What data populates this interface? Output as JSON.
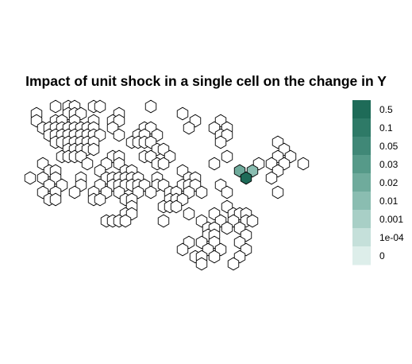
{
  "chart_data": {
    "type": "hexbin-map",
    "title": "Impact of unit shock in a single cell on the change in Y",
    "xlabel": "",
    "ylabel": "",
    "grid": false,
    "legend": {
      "position": "right",
      "labels": [
        "0.5",
        "0.1",
        "0.05",
        "0.03",
        "0.02",
        "0.01",
        "0.001",
        "1e-04",
        "0"
      ],
      "colors": [
        "#1e6b58",
        "#2e7a67",
        "#408877",
        "#569a89",
        "#6fab9c",
        "#8abdb1",
        "#a8cfc6",
        "#c5e0da",
        "#ddeeea"
      ]
    },
    "empty_fill": "#ffffff",
    "cells": [
      {
        "c": 6,
        "r": 0
      },
      {
        "c": 8,
        "r": 0
      },
      {
        "c": 9,
        "r": 0
      },
      {
        "c": 12,
        "r": 0
      },
      {
        "c": 13,
        "r": 0
      },
      {
        "c": 21,
        "r": 0
      },
      {
        "c": 3,
        "r": 1
      },
      {
        "c": 8,
        "r": 1
      },
      {
        "c": 9,
        "r": 1
      },
      {
        "c": 10,
        "r": 1
      },
      {
        "c": 16,
        "r": 1
      },
      {
        "c": 26,
        "r": 1
      },
      {
        "c": 3,
        "r": 2
      },
      {
        "c": 6,
        "r": 2
      },
      {
        "c": 7,
        "r": 2
      },
      {
        "c": 9,
        "r": 2
      },
      {
        "c": 12,
        "r": 2
      },
      {
        "c": 15,
        "r": 2
      },
      {
        "c": 16,
        "r": 2
      },
      {
        "c": 28,
        "r": 2
      },
      {
        "c": 32,
        "r": 2
      },
      {
        "c": 4,
        "r": 3
      },
      {
        "c": 5,
        "r": 3
      },
      {
        "c": 6,
        "r": 3
      },
      {
        "c": 7,
        "r": 3
      },
      {
        "c": 8,
        "r": 3
      },
      {
        "c": 9,
        "r": 3
      },
      {
        "c": 10,
        "r": 3
      },
      {
        "c": 11,
        "r": 3
      },
      {
        "c": 12,
        "r": 3
      },
      {
        "c": 15,
        "r": 3
      },
      {
        "c": 20,
        "r": 3
      },
      {
        "c": 21,
        "r": 3
      },
      {
        "c": 27,
        "r": 3
      },
      {
        "c": 31,
        "r": 3
      },
      {
        "c": 33,
        "r": 3
      },
      {
        "c": 5,
        "r": 4
      },
      {
        "c": 6,
        "r": 4
      },
      {
        "c": 7,
        "r": 4
      },
      {
        "c": 8,
        "r": 4
      },
      {
        "c": 9,
        "r": 4
      },
      {
        "c": 10,
        "r": 4
      },
      {
        "c": 11,
        "r": 4
      },
      {
        "c": 12,
        "r": 4
      },
      {
        "c": 13,
        "r": 4
      },
      {
        "c": 16,
        "r": 4
      },
      {
        "c": 19,
        "r": 4
      },
      {
        "c": 20,
        "r": 4
      },
      {
        "c": 22,
        "r": 4
      },
      {
        "c": 32,
        "r": 4
      },
      {
        "c": 33,
        "r": 4
      },
      {
        "c": 6,
        "r": 5
      },
      {
        "c": 7,
        "r": 5
      },
      {
        "c": 8,
        "r": 5
      },
      {
        "c": 9,
        "r": 5
      },
      {
        "c": 10,
        "r": 5
      },
      {
        "c": 11,
        "r": 5
      },
      {
        "c": 12,
        "r": 5
      },
      {
        "c": 18,
        "r": 5
      },
      {
        "c": 19,
        "r": 5
      },
      {
        "c": 20,
        "r": 5
      },
      {
        "c": 21,
        "r": 5
      },
      {
        "c": 32,
        "r": 5
      },
      {
        "c": 41,
        "r": 5
      },
      {
        "c": 8,
        "r": 6
      },
      {
        "c": 9,
        "r": 6
      },
      {
        "c": 10,
        "r": 6
      },
      {
        "c": 11,
        "r": 6
      },
      {
        "c": 12,
        "r": 6
      },
      {
        "c": 22,
        "r": 6
      },
      {
        "c": 23,
        "r": 6
      },
      {
        "c": 42,
        "r": 6
      },
      {
        "c": 7,
        "r": 7
      },
      {
        "c": 8,
        "r": 7
      },
      {
        "c": 9,
        "r": 7
      },
      {
        "c": 10,
        "r": 7
      },
      {
        "c": 15,
        "r": 7
      },
      {
        "c": 16,
        "r": 7
      },
      {
        "c": 20,
        "r": 7
      },
      {
        "c": 21,
        "r": 7
      },
      {
        "c": 24,
        "r": 7
      },
      {
        "c": 33,
        "r": 7
      },
      {
        "c": 41,
        "r": 7
      },
      {
        "c": 43,
        "r": 7
      },
      {
        "c": 4,
        "r": 8
      },
      {
        "c": 11,
        "r": 8
      },
      {
        "c": 14,
        "r": 8
      },
      {
        "c": 16,
        "r": 8
      },
      {
        "c": 22,
        "r": 8
      },
      {
        "c": 23,
        "r": 8
      },
      {
        "c": 31,
        "r": 8
      },
      {
        "c": 38,
        "r": 8
      },
      {
        "c": 40,
        "r": 8
      },
      {
        "c": 42,
        "r": 8
      },
      {
        "c": 45,
        "r": 8
      },
      {
        "c": 5,
        "r": 9
      },
      {
        "c": 6,
        "r": 9
      },
      {
        "c": 13,
        "r": 9
      },
      {
        "c": 17,
        "r": 9
      },
      {
        "c": 18,
        "r": 9
      },
      {
        "c": 26,
        "r": 9
      },
      {
        "c": 35,
        "r": 9,
        "v": 4
      },
      {
        "c": 37,
        "r": 9,
        "v": 5
      },
      {
        "c": 41,
        "r": 9
      },
      {
        "c": 2,
        "r": 10
      },
      {
        "c": 4,
        "r": 10
      },
      {
        "c": 6,
        "r": 10
      },
      {
        "c": 10,
        "r": 10
      },
      {
        "c": 14,
        "r": 10
      },
      {
        "c": 15,
        "r": 10
      },
      {
        "c": 16,
        "r": 10
      },
      {
        "c": 17,
        "r": 10
      },
      {
        "c": 18,
        "r": 10
      },
      {
        "c": 19,
        "r": 10
      },
      {
        "c": 22,
        "r": 10
      },
      {
        "c": 27,
        "r": 10
      },
      {
        "c": 28,
        "r": 10
      },
      {
        "c": 36,
        "r": 10,
        "v": 0
      },
      {
        "c": 40,
        "r": 10
      },
      {
        "c": 5,
        "r": 11
      },
      {
        "c": 7,
        "r": 11
      },
      {
        "c": 10,
        "r": 11
      },
      {
        "c": 13,
        "r": 11
      },
      {
        "c": 15,
        "r": 11
      },
      {
        "c": 16,
        "r": 11
      },
      {
        "c": 17,
        "r": 11
      },
      {
        "c": 18,
        "r": 11
      },
      {
        "c": 19,
        "r": 11
      },
      {
        "c": 20,
        "r": 11
      },
      {
        "c": 22,
        "r": 11
      },
      {
        "c": 23,
        "r": 11
      },
      {
        "c": 26,
        "r": 11
      },
      {
        "c": 27,
        "r": 11
      },
      {
        "c": 28,
        "r": 11
      },
      {
        "c": 32,
        "r": 11
      },
      {
        "c": 4,
        "r": 12
      },
      {
        "c": 6,
        "r": 12
      },
      {
        "c": 9,
        "r": 12
      },
      {
        "c": 12,
        "r": 12
      },
      {
        "c": 14,
        "r": 12
      },
      {
        "c": 16,
        "r": 12
      },
      {
        "c": 19,
        "r": 12
      },
      {
        "c": 21,
        "r": 12
      },
      {
        "c": 24,
        "r": 12
      },
      {
        "c": 25,
        "r": 12
      },
      {
        "c": 27,
        "r": 12
      },
      {
        "c": 29,
        "r": 12
      },
      {
        "c": 33,
        "r": 12
      },
      {
        "c": 41,
        "r": 12
      },
      {
        "c": 5,
        "r": 13
      },
      {
        "c": 6,
        "r": 13
      },
      {
        "c": 12,
        "r": 13
      },
      {
        "c": 13,
        "r": 13
      },
      {
        "c": 17,
        "r": 13
      },
      {
        "c": 18,
        "r": 13
      },
      {
        "c": 24,
        "r": 13
      },
      {
        "c": 25,
        "r": 13
      },
      {
        "c": 26,
        "r": 13
      },
      {
        "c": 18,
        "r": 14
      },
      {
        "c": 23,
        "r": 14
      },
      {
        "c": 24,
        "r": 14
      },
      {
        "c": 25,
        "r": 14
      },
      {
        "c": 33,
        "r": 14
      },
      {
        "c": 17,
        "r": 15
      },
      {
        "c": 18,
        "r": 15
      },
      {
        "c": 27,
        "r": 15
      },
      {
        "c": 31,
        "r": 15
      },
      {
        "c": 34,
        "r": 15
      },
      {
        "c": 35,
        "r": 15
      },
      {
        "c": 36,
        "r": 15
      },
      {
        "c": 14,
        "r": 16
      },
      {
        "c": 15,
        "r": 16
      },
      {
        "c": 16,
        "r": 16
      },
      {
        "c": 17,
        "r": 16
      },
      {
        "c": 23,
        "r": 16
      },
      {
        "c": 29,
        "r": 16
      },
      {
        "c": 32,
        "r": 16
      },
      {
        "c": 34,
        "r": 16
      },
      {
        "c": 36,
        "r": 16
      },
      {
        "c": 37,
        "r": 16
      },
      {
        "c": 30,
        "r": 17
      },
      {
        "c": 31,
        "r": 17
      },
      {
        "c": 33,
        "r": 17
      },
      {
        "c": 35,
        "r": 17
      },
      {
        "c": 30,
        "r": 18
      },
      {
        "c": 31,
        "r": 18
      },
      {
        "c": 36,
        "r": 18
      },
      {
        "c": 27,
        "r": 19
      },
      {
        "c": 29,
        "r": 19
      },
      {
        "c": 31,
        "r": 19
      },
      {
        "c": 35,
        "r": 19
      },
      {
        "c": 26,
        "r": 20
      },
      {
        "c": 30,
        "r": 20
      },
      {
        "c": 32,
        "r": 20
      },
      {
        "c": 36,
        "r": 20
      },
      {
        "c": 28,
        "r": 21
      },
      {
        "c": 29,
        "r": 21
      },
      {
        "c": 31,
        "r": 21
      },
      {
        "c": 35,
        "r": 21
      },
      {
        "c": 29,
        "r": 22
      },
      {
        "c": 34,
        "r": 22
      }
    ]
  }
}
